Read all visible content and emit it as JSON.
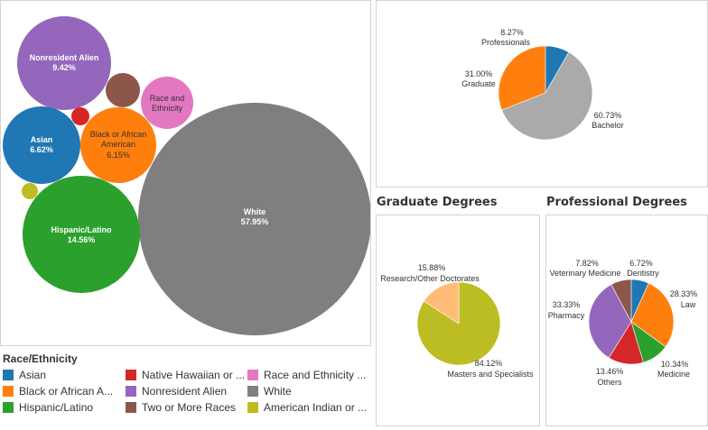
{
  "colors": {
    "asian": "#1f77b4",
    "black": "#ff7f0e",
    "hispanic": "#2ca02c",
    "native_hawaiian": "#d62728",
    "nonresident": "#9467bd",
    "two_or_more": "#8c564b",
    "race_unknown": "#e377c2",
    "white": "#7f7f7f",
    "american_indian": "#bcbd22",
    "graduate": "#ff7f0e",
    "professionals": "#1f77b4",
    "bachelor": "#aaaaaa",
    "masters": "#bcbd22",
    "research": "#ffbb78"
  },
  "bubble_chart": {
    "labels": {
      "nonresident": [
        "Nonresident Alien",
        "9.42%"
      ],
      "race": [
        "Race and",
        "Ethnicity"
      ],
      "black": [
        "Black or African",
        "American",
        "6.15%"
      ],
      "asian": [
        "Asian",
        "6.62%"
      ],
      "white": [
        "White",
        "57.95%"
      ],
      "hispanic": [
        "Hispanic/Latino",
        "14.56%"
      ]
    }
  },
  "legend": {
    "title": "Race/Ethnicity",
    "items": [
      {
        "label": "Asian",
        "color": "#1f77b4"
      },
      {
        "label": "Native Hawaiian or ...",
        "color": "#d62728"
      },
      {
        "label": "Race and Ethnicity ...",
        "color": "#e377c2"
      },
      {
        "label": "Black or African A...",
        "color": "#ff7f0e"
      },
      {
        "label": "Nonresident Alien",
        "color": "#9467bd"
      },
      {
        "label": "White",
        "color": "#7f7f7f"
      },
      {
        "label": "Hispanic/Latino",
        "color": "#2ca02c"
      },
      {
        "label": "Two or More Races",
        "color": "#8c564b"
      },
      {
        "label": "American Indian or ...",
        "color": "#bcbd22"
      }
    ]
  },
  "degree_pie": {
    "labels": {
      "professionals": [
        "8.27%",
        "Professionals"
      ],
      "graduate": [
        "31.00%",
        "Graduate"
      ],
      "bachelor": [
        "60.73%",
        "Bachelor"
      ]
    }
  },
  "graduate_section": {
    "title": "Graduate Degrees",
    "labels": {
      "research": [
        "15.88%",
        "Research/Other Doctorates"
      ],
      "masters": [
        "84.12%",
        "Masters and Specialists"
      ]
    }
  },
  "professional_section": {
    "title": "Professional Degrees",
    "labels": {
      "vet": [
        "7.82%",
        "Veterinary Medicine"
      ],
      "dentistry": [
        "6.72%",
        "Dentistry"
      ],
      "law": [
        "28.33%",
        "Law"
      ],
      "pharmacy": [
        "33.33%",
        "Pharmacy"
      ],
      "medicine": [
        "10.34%",
        "Medicine"
      ],
      "others": [
        "13.46%",
        "Others"
      ]
    }
  },
  "chart_data": [
    {
      "type": "bubble",
      "title": "",
      "legend_title": "Race/Ethnicity",
      "categories": [
        "White",
        "Hispanic/Latino",
        "Nonresident Alien",
        "Asian",
        "Black or African American",
        "Race and Ethnicity Unknown",
        "Two or More Races",
        "Native Hawaiian or Other Pacific Islander",
        "American Indian or Alaska Native"
      ],
      "values": [
        57.95,
        14.56,
        9.42,
        6.62,
        6.15,
        null,
        null,
        null,
        null
      ],
      "unit": "%"
    },
    {
      "type": "pie",
      "title": "",
      "categories": [
        "Bachelor",
        "Graduate",
        "Professionals"
      ],
      "values": [
        60.73,
        31.0,
        8.27
      ],
      "unit": "%"
    },
    {
      "type": "pie",
      "title": "Graduate Degrees",
      "categories": [
        "Masters and Specialists",
        "Research/Other Doctorates"
      ],
      "values": [
        84.12,
        15.88
      ],
      "unit": "%"
    },
    {
      "type": "pie",
      "title": "Professional Degrees",
      "categories": [
        "Dentistry",
        "Law",
        "Medicine",
        "Others",
        "Pharmacy",
        "Veterinary Medicine"
      ],
      "values": [
        6.72,
        28.33,
        10.34,
        13.46,
        33.33,
        7.82
      ],
      "unit": "%"
    }
  ]
}
